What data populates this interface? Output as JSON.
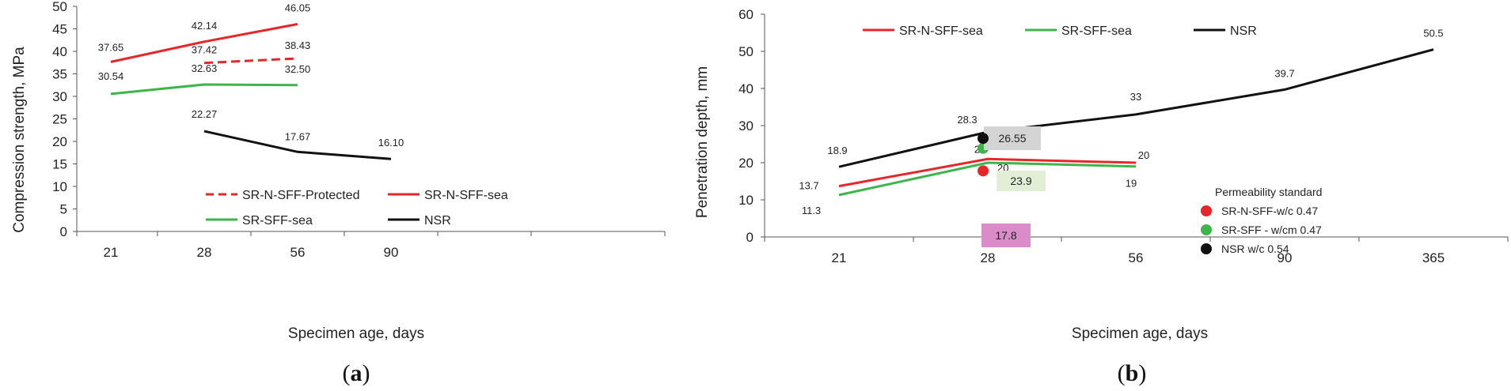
{
  "chart_data": [
    {
      "type": "line",
      "panel_label": "a",
      "xlabel": "Specimen age, days",
      "ylabel": "Compression strength, MPa",
      "categories": [
        "21",
        "28",
        "56",
        "90"
      ],
      "ylim": [
        0,
        50
      ],
      "yticks": [
        "0",
        "5",
        "10",
        "15",
        "20",
        "25",
        "30",
        "35",
        "40",
        "45",
        "50"
      ],
      "grid": false,
      "legend_position": "bottom",
      "series": [
        {
          "name": "SR-N-SFF-Protected",
          "color": "#e8262a",
          "dash": true,
          "values": [
            null,
            37.42,
            38.43,
            null
          ],
          "labels": [
            null,
            "37.42",
            "38.43",
            null
          ]
        },
        {
          "name": "SR-N-SFF-sea",
          "color": "#e8262a",
          "dash": false,
          "values": [
            37.65,
            42.14,
            46.05,
            null
          ],
          "labels": [
            "37.65",
            "42.14",
            "46.05",
            null
          ]
        },
        {
          "name": "SR-SFF-sea",
          "color": "#3db54a",
          "dash": false,
          "values": [
            30.54,
            32.63,
            32.5,
            null
          ],
          "labels": [
            "30.54",
            "32.63",
            "32.50",
            null
          ]
        },
        {
          "name": "NSR",
          "color": "#111111",
          "dash": false,
          "values": [
            null,
            22.27,
            17.67,
            16.1
          ],
          "labels": [
            null,
            "22.27",
            "17.67",
            "16.10"
          ]
        }
      ]
    },
    {
      "type": "line",
      "panel_label": "b",
      "xlabel": "Specimen age, days",
      "ylabel": "Penetration depth, mm",
      "categories": [
        "21",
        "28",
        "56",
        "90",
        "365"
      ],
      "ylim": [
        0,
        60
      ],
      "yticks": [
        "0",
        "10",
        "20",
        "30",
        "40",
        "50",
        "60"
      ],
      "grid": false,
      "legend_position": "top",
      "series": [
        {
          "name": "SR-N-SFF-sea",
          "color": "#e8262a",
          "values": [
            13.7,
            21,
            20,
            null,
            null
          ],
          "labels": [
            "13.7",
            "21",
            "20",
            null,
            null
          ]
        },
        {
          "name": "SR-SFF-sea",
          "color": "#3db54a",
          "values": [
            11.3,
            20,
            19,
            null,
            null
          ],
          "labels": [
            "11.3",
            "20",
            "19",
            null,
            null
          ]
        },
        {
          "name": "NSR",
          "color": "#111111",
          "values": [
            18.9,
            28.3,
            33,
            39.7,
            50.5
          ],
          "labels": [
            "18.9",
            "28.3",
            "33",
            "39.7",
            "50.5"
          ]
        }
      ],
      "permeability_standard": {
        "title": "Permeability standard",
        "points": [
          {
            "name": "SR-N-SFF-w/c  0.47",
            "color": "#e8262a",
            "x": "28",
            "y": 17.8,
            "label": "17.8",
            "box_color": "#d98cc8"
          },
          {
            "name": "SR-SFF     - w/cm 0.47",
            "color": "#3db54a",
            "x": "28",
            "y": 23.9,
            "label": "23.9",
            "box_color": "#e2efd6"
          },
          {
            "name": "NSR w/c 0.54",
            "color": "#111111",
            "x": "28",
            "y": 26.55,
            "label": "26.55",
            "box_color": "#d4d4d4"
          }
        ]
      }
    }
  ]
}
